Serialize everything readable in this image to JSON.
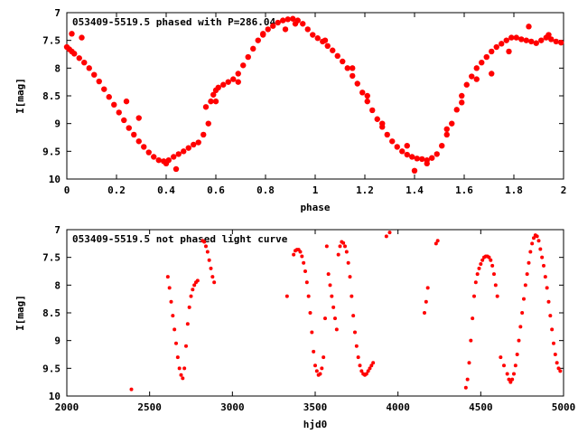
{
  "colors": {
    "series": "#ff0000",
    "axis": "#000000",
    "background": "#ffffff"
  },
  "chart_data": [
    {
      "type": "scatter",
      "title": "053409-5519.5 phased with P=286.04",
      "xlabel": "phase",
      "ylabel": "I[mag]",
      "xlim": [
        0,
        2
      ],
      "ylim": [
        7,
        10
      ],
      "y_inverted": true,
      "grid": false,
      "marker": "filled-dot",
      "xticks": [
        "0",
        "0.2",
        "0.4",
        "0.6",
        "0.8",
        "1",
        "1.2",
        "1.4",
        "1.6",
        "1.8",
        "2"
      ],
      "yticks": [
        "7",
        "7.5",
        "8",
        "8.5",
        "9",
        "9.5",
        "10"
      ],
      "series": [
        {
          "x": [
            0.0,
            0.01,
            0.02,
            0.03,
            0.05,
            0.07,
            0.09,
            0.11,
            0.13,
            0.15,
            0.17,
            0.19,
            0.21,
            0.23,
            0.25,
            0.27,
            0.29,
            0.31,
            0.33,
            0.35,
            0.37,
            0.39,
            0.41,
            0.43,
            0.45,
            0.47,
            0.49,
            0.51,
            0.53,
            0.55,
            0.57,
            0.58,
            0.59,
            0.6,
            0.61,
            0.63,
            0.65,
            0.67,
            0.69,
            0.71,
            0.73,
            0.75,
            0.77,
            0.79,
            0.81,
            0.83,
            0.85,
            0.87,
            0.89,
            0.91,
            0.93,
            0.95,
            0.97,
            0.99,
            1.01,
            1.03,
            1.05,
            1.07,
            1.09,
            1.11,
            1.13,
            1.15,
            1.17,
            1.19,
            1.21,
            1.23,
            1.25,
            1.27,
            1.29,
            1.31,
            1.33,
            1.35,
            1.37,
            1.39,
            1.41,
            1.43,
            1.45,
            1.47,
            1.49,
            1.51,
            1.53,
            1.55,
            1.57,
            1.59,
            1.61,
            1.63,
            1.65,
            1.67,
            1.69,
            1.71,
            1.73,
            1.75,
            1.77,
            1.79,
            1.81,
            1.83,
            1.85,
            1.87,
            1.89,
            1.91,
            1.93,
            1.95,
            1.97,
            1.99,
            0.02,
            0.06,
            0.24,
            0.29,
            0.4,
            0.44,
            0.56,
            0.6,
            0.69,
            0.79,
            0.88,
            0.92,
            1.04,
            1.15,
            1.21,
            1.27,
            1.37,
            1.4,
            1.45,
            1.53,
            1.59,
            1.65,
            1.71,
            1.78,
            1.86,
            1.94
          ],
          "y": [
            7.62,
            7.66,
            7.7,
            7.74,
            7.82,
            7.9,
            8.0,
            8.12,
            8.24,
            8.38,
            8.52,
            8.66,
            8.8,
            8.94,
            9.08,
            9.2,
            9.32,
            9.42,
            9.52,
            9.6,
            9.66,
            9.68,
            9.66,
            9.6,
            9.55,
            9.5,
            9.44,
            9.38,
            9.34,
            9.2,
            9.0,
            8.6,
            8.48,
            8.4,
            8.35,
            8.3,
            8.25,
            8.2,
            8.1,
            7.95,
            7.8,
            7.65,
            7.5,
            7.38,
            7.3,
            7.24,
            7.18,
            7.14,
            7.12,
            7.11,
            7.14,
            7.2,
            7.3,
            7.4,
            7.46,
            7.52,
            7.6,
            7.68,
            7.78,
            7.88,
            8.0,
            8.14,
            8.28,
            8.44,
            8.6,
            8.76,
            8.92,
            9.06,
            9.2,
            9.32,
            9.42,
            9.5,
            9.56,
            9.6,
            9.63,
            9.64,
            9.66,
            9.62,
            9.55,
            9.4,
            9.2,
            9.0,
            8.75,
            8.5,
            8.3,
            8.15,
            8.0,
            7.9,
            7.8,
            7.7,
            7.62,
            7.56,
            7.5,
            7.45,
            7.45,
            7.48,
            7.5,
            7.52,
            7.55,
            7.5,
            7.45,
            7.48,
            7.52,
            7.54,
            7.38,
            7.45,
            8.6,
            8.9,
            9.72,
            9.82,
            8.7,
            8.6,
            8.25,
            7.4,
            7.3,
            7.2,
            7.5,
            8.0,
            8.5,
            9.0,
            9.4,
            9.85,
            9.72,
            9.1,
            8.62,
            8.2,
            8.1,
            7.7,
            7.25,
            7.4
          ]
        }
      ]
    },
    {
      "type": "scatter",
      "title": "053409-5519.5 not phased light curve",
      "xlabel": "hjd0",
      "ylabel": "I[mag]",
      "xlim": [
        2000,
        5000
      ],
      "ylim": [
        7,
        10
      ],
      "y_inverted": true,
      "grid": false,
      "marker": "dot",
      "xticks": [
        "2000",
        "2500",
        "3000",
        "3500",
        "4000",
        "4500",
        "5000"
      ],
      "yticks": [
        "7",
        "7.5",
        "8",
        "8.5",
        "9",
        "9.5",
        "10"
      ],
      "series": [
        {
          "x": [
            2390,
            2610,
            2620,
            2630,
            2640,
            2650,
            2660,
            2670,
            2680,
            2690,
            2700,
            2710,
            2720,
            2730,
            2740,
            2750,
            2760,
            2770,
            2780,
            2790,
            2820,
            2830,
            2840,
            2850,
            2860,
            2870,
            2880,
            2890,
            3330,
            3370,
            3380,
            3390,
            3400,
            3410,
            3420,
            3430,
            3440,
            3450,
            3460,
            3470,
            3480,
            3490,
            3500,
            3510,
            3520,
            3530,
            3540,
            3550,
            3560,
            3570,
            3580,
            3590,
            3600,
            3610,
            3620,
            3630,
            3640,
            3650,
            3660,
            3670,
            3680,
            3690,
            3700,
            3710,
            3720,
            3730,
            3740,
            3750,
            3760,
            3770,
            3780,
            3790,
            3800,
            3810,
            3820,
            3830,
            3840,
            3850,
            3930,
            3950,
            4160,
            4170,
            4180,
            4230,
            4240,
            4410,
            4420,
            4430,
            4440,
            4450,
            4460,
            4470,
            4480,
            4490,
            4500,
            4510,
            4520,
            4530,
            4540,
            4550,
            4560,
            4570,
            4580,
            4590,
            4600,
            4620,
            4640,
            4660,
            4670,
            4680,
            4690,
            4700,
            4710,
            4720,
            4730,
            4740,
            4750,
            4760,
            4770,
            4780,
            4790,
            4800,
            4810,
            4820,
            4830,
            4840,
            4850,
            4860,
            4870,
            4880,
            4890,
            4900,
            4910,
            4920,
            4930,
            4940,
            4950,
            4960,
            4970,
            4980
          ],
          "y": [
            9.88,
            7.85,
            8.05,
            8.3,
            8.55,
            8.8,
            9.05,
            9.3,
            9.5,
            9.62,
            9.68,
            9.5,
            9.1,
            8.7,
            8.4,
            8.2,
            8.08,
            8.0,
            7.95,
            7.92,
            7.2,
            7.22,
            7.3,
            7.4,
            7.55,
            7.7,
            7.85,
            7.95,
            8.2,
            7.45,
            7.38,
            7.36,
            7.36,
            7.4,
            7.48,
            7.6,
            7.75,
            7.95,
            8.2,
            8.5,
            8.85,
            9.2,
            9.45,
            9.55,
            9.62,
            9.6,
            9.5,
            9.3,
            8.6,
            7.3,
            7.8,
            8.0,
            8.2,
            8.4,
            8.6,
            8.8,
            7.45,
            7.3,
            7.22,
            7.24,
            7.3,
            7.4,
            7.6,
            7.85,
            8.2,
            8.55,
            8.85,
            9.1,
            9.3,
            9.45,
            9.55,
            9.6,
            9.62,
            9.6,
            9.55,
            9.5,
            9.45,
            9.4,
            7.12,
            7.05,
            8.5,
            8.3,
            8.05,
            7.25,
            7.2,
            9.85,
            9.7,
            9.4,
            9.0,
            8.6,
            8.2,
            7.95,
            7.8,
            7.7,
            7.62,
            7.55,
            7.5,
            7.48,
            7.48,
            7.5,
            7.55,
            7.65,
            7.8,
            8.0,
            8.2,
            9.3,
            9.45,
            9.6,
            9.7,
            9.75,
            9.7,
            9.6,
            9.45,
            9.25,
            9.0,
            8.75,
            8.5,
            8.25,
            8.0,
            7.8,
            7.6,
            7.4,
            7.25,
            7.15,
            7.1,
            7.12,
            7.2,
            7.35,
            7.5,
            7.65,
            7.85,
            8.05,
            8.3,
            8.55,
            8.8,
            9.05,
            9.25,
            9.4,
            9.5,
            9.55
          ]
        }
      ]
    }
  ]
}
